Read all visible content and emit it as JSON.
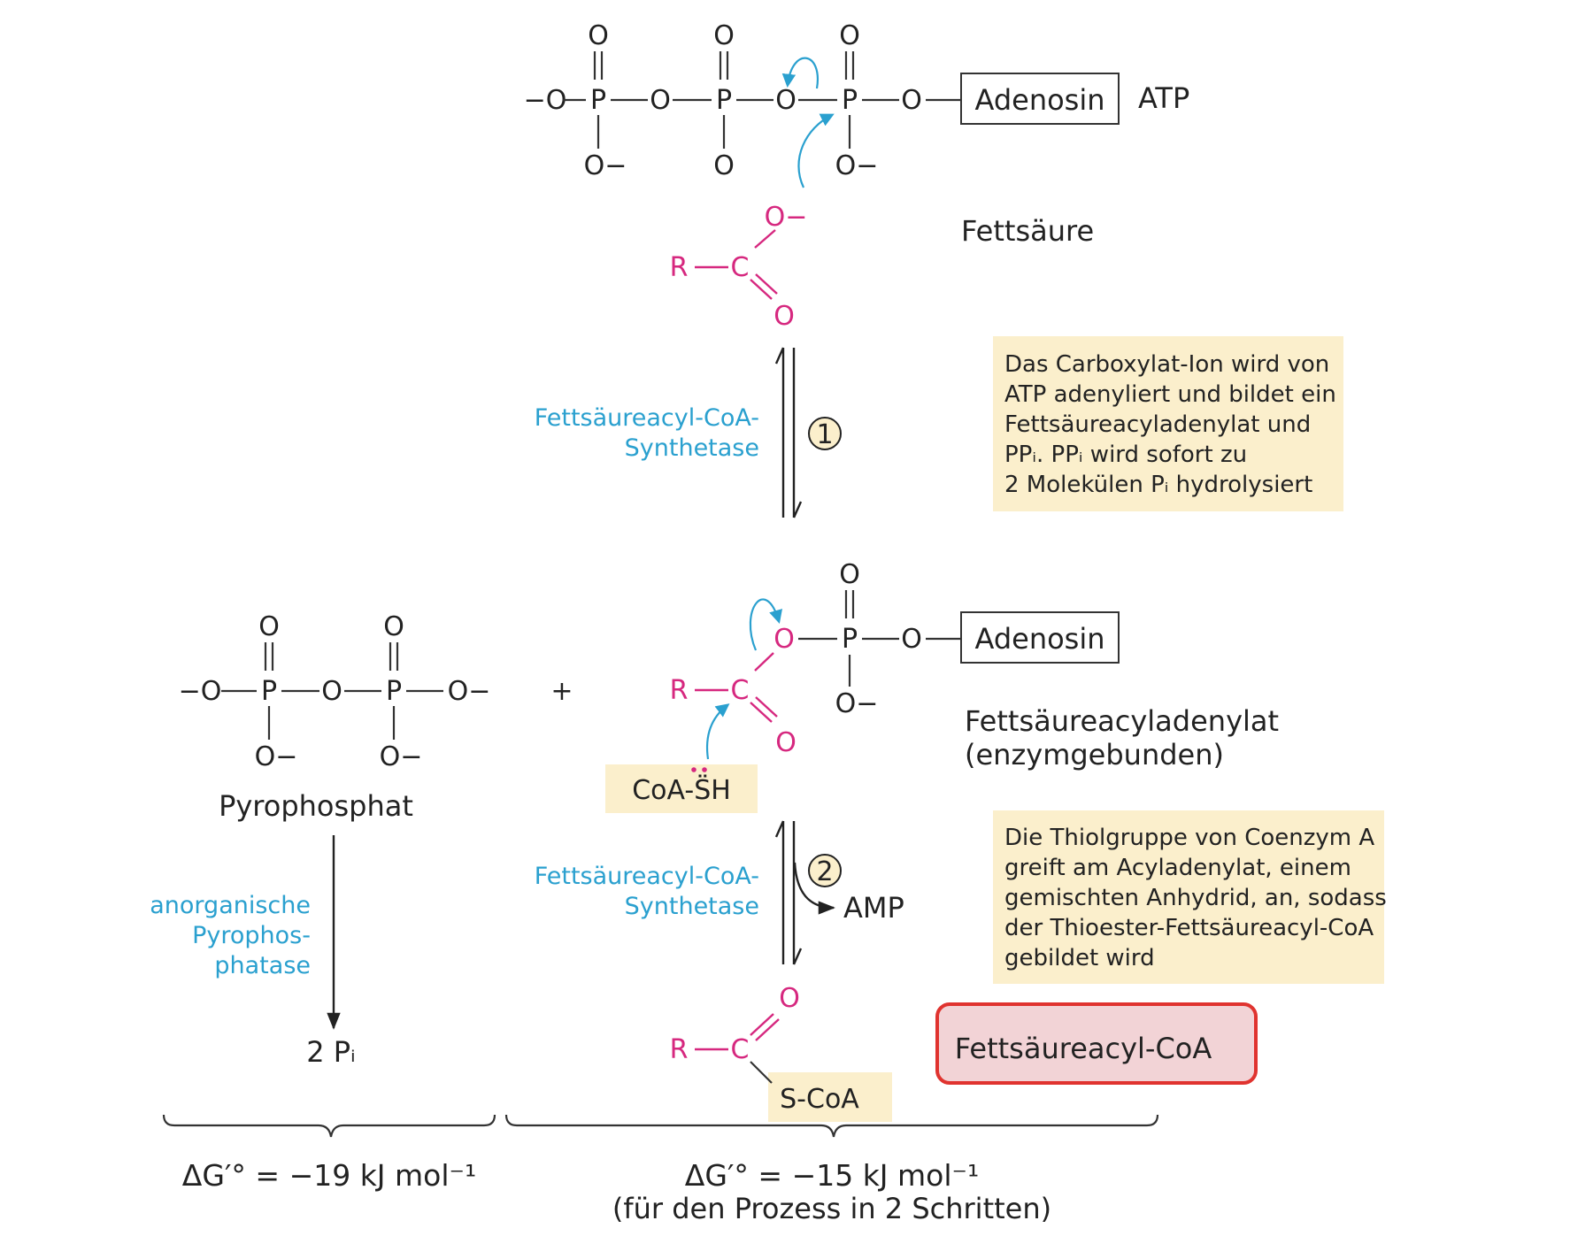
{
  "atoms": {
    "O": "O",
    "O_minus": "O−",
    "minus_O": "−O",
    "P": "P",
    "R": "R",
    "C": "C",
    "S_CoA": "S-CoA",
    "CoA_SH": "CoA-S̈H"
  },
  "atp": {
    "box": "Adenosin",
    "label": "ATP"
  },
  "fatty_acid": {
    "label": "Fettsäure"
  },
  "step1": {
    "number": "1",
    "enzyme_line1": "Fettsäureacyl-CoA-",
    "enzyme_line2": "Synthetase",
    "note_lines": [
      "Das Carboxylat-Ion wird von",
      "ATP adenyliert und bildet ein",
      "Fettsäureacyladenylat und",
      "PPᵢ. PPᵢ wird sofort zu",
      "2 Molekülen Pᵢ hydrolysiert"
    ]
  },
  "pyrophosphate": {
    "label": "Pyrophosphat",
    "enzyme_lines": [
      "anorganische",
      "Pyrophos-",
      "phatase"
    ],
    "product": "2 Pᵢ"
  },
  "plus": "+",
  "adenylate": {
    "box": "Adenosin",
    "label_line1": "Fettsäureacyladenylat",
    "label_line2": "(enzymgebunden)"
  },
  "step2": {
    "number": "2",
    "enzyme_line1": "Fettsäureacyl-CoA-",
    "enzyme_line2": "Synthetase",
    "side_product": "AMP",
    "note_lines": [
      "Die Thiolgruppe von Coenzym A",
      "greift am Acyladenylat, einem",
      "gemischten Anhydrid, an, sodass",
      "der Thioester-Fettsäureacyl-CoA",
      "gebildet wird"
    ]
  },
  "product": {
    "label": "Fettsäureacyl-CoA"
  },
  "energy": {
    "left": "ΔG′° = −19 kJ mol⁻¹",
    "right": "ΔG′° = −15 kJ mol⁻¹",
    "right_note": "(für den Prozess in 2 Schritten)"
  },
  "colors": {
    "enzyme_text": "#2aa0cf",
    "acyl_pink": "#d6287f",
    "note_fill": "#fbefcc",
    "product_fill": "#f2d3d6",
    "product_border": "#e0332f"
  }
}
